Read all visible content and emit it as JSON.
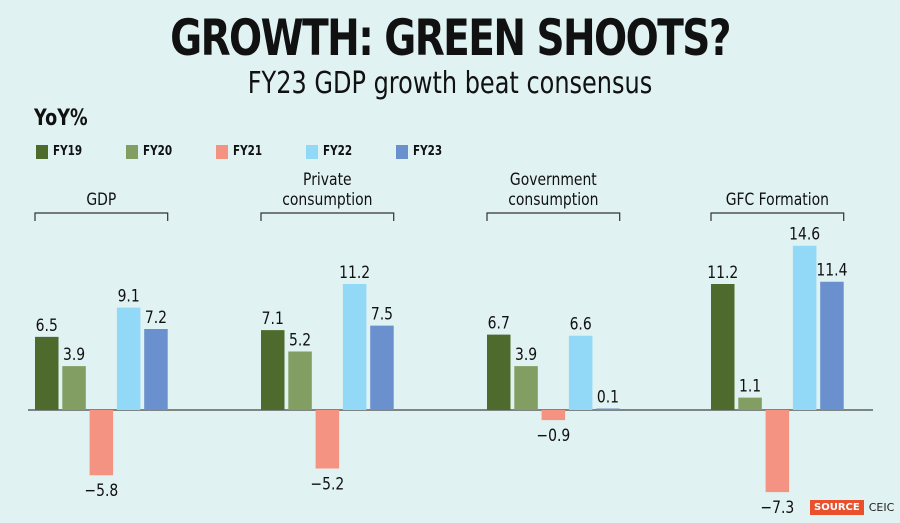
{
  "header": {
    "title": "GROWTH: GREEN SHOOTS?",
    "subtitle": "FY23 GDP growth beat consensus"
  },
  "footer": {
    "source_label": "SOURCE",
    "source_name": "CEIC"
  },
  "chart_data": {
    "type": "bar",
    "title": "GROWTH: GREEN SHOOTS?",
    "subtitle": "FY23 GDP growth beat consensus",
    "ylabel": "YoY%",
    "xlabel": "",
    "categories": [
      "GDP",
      "Private consumption",
      "Government consumption",
      "GFC Formation"
    ],
    "category_lines": [
      [
        "GDP"
      ],
      [
        "Private",
        "consumption"
      ],
      [
        "Government",
        "consumption"
      ],
      [
        "GFC Formation"
      ]
    ],
    "series": [
      {
        "name": "FY19",
        "color": "#4e6a2c",
        "values": [
          6.5,
          7.1,
          6.7,
          11.2
        ]
      },
      {
        "name": "FY20",
        "color": "#829e62",
        "values": [
          3.9,
          5.2,
          3.9,
          1.1
        ]
      },
      {
        "name": "FY21",
        "color": "#f59383",
        "values": [
          -5.8,
          -5.2,
          -0.9,
          -7.3
        ]
      },
      {
        "name": "FY22",
        "color": "#92d9f7",
        "values": [
          9.1,
          11.2,
          6.6,
          14.6
        ]
      },
      {
        "name": "FY23",
        "color": "#6a90cd",
        "values": [
          7.2,
          7.5,
          0.1,
          11.4
        ]
      }
    ],
    "ylim": [
      -7.5,
      15
    ],
    "grid": false,
    "legend": "top-left"
  }
}
